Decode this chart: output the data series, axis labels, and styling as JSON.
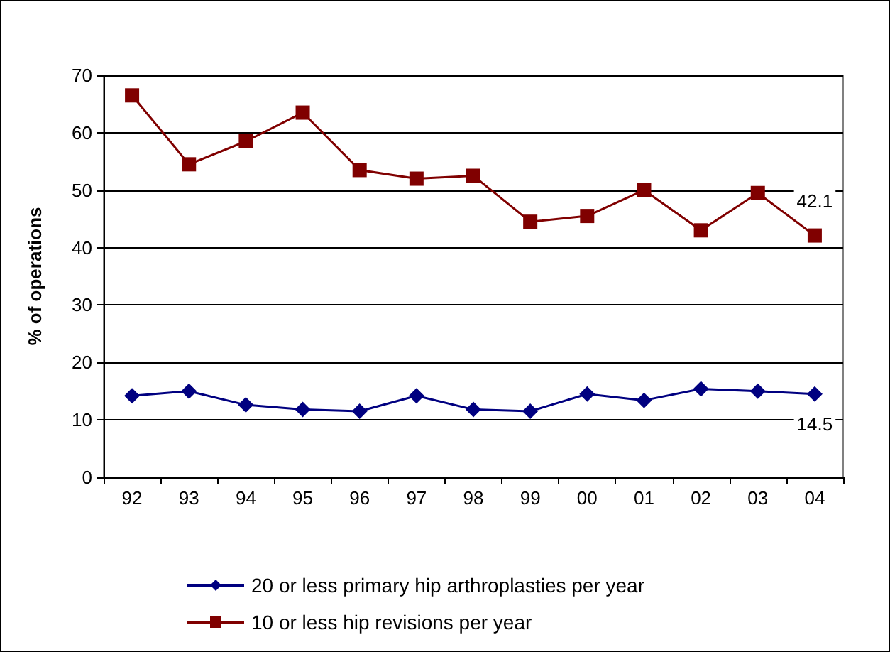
{
  "chart_data": {
    "type": "line",
    "ylabel": "% of operations",
    "categories": [
      "92",
      "93",
      "94",
      "95",
      "96",
      "97",
      "98",
      "99",
      "00",
      "01",
      "02",
      "03",
      "04"
    ],
    "series": [
      {
        "name": "20 or less primary hip arthroplasties per year",
        "color": "#000080",
        "marker": "diamond",
        "values": [
          14.2,
          15,
          12.6,
          11.8,
          11.5,
          14.2,
          11.8,
          11.5,
          14.5,
          13.4,
          15.4,
          15,
          14.5
        ],
        "value_labels": [
          null,
          null,
          null,
          null,
          null,
          null,
          null,
          null,
          null,
          null,
          null,
          null,
          "14.5"
        ]
      },
      {
        "name": "10 or less hip revisions per year",
        "color": "#800000",
        "marker": "square",
        "values": [
          66.5,
          54.5,
          58.5,
          63.5,
          53.5,
          52,
          52.5,
          44.5,
          45.5,
          50,
          43,
          49.5,
          42.1
        ],
        "value_labels": [
          null,
          null,
          null,
          null,
          null,
          null,
          null,
          null,
          null,
          null,
          null,
          null,
          "42.1"
        ]
      }
    ],
    "ylim": [
      0,
      70
    ],
    "yticks": [
      0,
      10,
      20,
      30,
      40,
      50,
      60,
      70
    ],
    "grid": "y",
    "legend": "bottom"
  }
}
